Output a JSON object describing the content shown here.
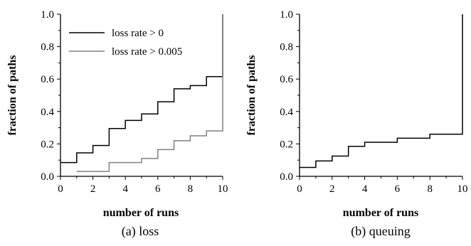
{
  "chart_data": [
    {
      "type": "line",
      "step": true,
      "caption": "(a) loss",
      "xlabel": "number of runs",
      "ylabel": "fraction of paths",
      "xlim": [
        0,
        10
      ],
      "ylim": [
        0,
        1.0
      ],
      "xticks": [
        "0",
        "2",
        "4",
        "6",
        "8",
        "10"
      ],
      "yticks": [
        "0.0",
        "0.2",
        "0.4",
        "0.6",
        "0.8",
        "1.0"
      ],
      "legend_position": "top-left",
      "series": [
        {
          "name": "loss rate > 0",
          "color": "#000000",
          "x": [
            0,
            1,
            2,
            3,
            4,
            5,
            6,
            7,
            8,
            9,
            10,
            10
          ],
          "y": [
            0.085,
            0.145,
            0.19,
            0.295,
            0.345,
            0.385,
            0.46,
            0.54,
            0.56,
            0.615,
            0.625,
            1.0
          ]
        },
        {
          "name": "loss rate > 0.005",
          "color": "#808080",
          "x": [
            1,
            3,
            5,
            6,
            7,
            8,
            9,
            10,
            10
          ],
          "y": [
            0.03,
            0.085,
            0.11,
            0.165,
            0.22,
            0.25,
            0.28,
            0.305,
            1.0
          ]
        }
      ]
    },
    {
      "type": "line",
      "step": true,
      "caption": "(b) queuing",
      "xlabel": "number of runs",
      "ylabel": "fraction of paths",
      "xlim": [
        0,
        10
      ],
      "ylim": [
        0,
        1.0
      ],
      "xticks": [
        "0",
        "2",
        "4",
        "6",
        "8",
        "10"
      ],
      "yticks": [
        "0.0",
        "0.2",
        "0.4",
        "0.6",
        "0.8",
        "1.0"
      ],
      "series": [
        {
          "color": "#000000",
          "x": [
            0,
            1,
            2,
            3,
            4,
            6,
            8,
            10,
            10
          ],
          "y": [
            0.055,
            0.095,
            0.125,
            0.185,
            0.21,
            0.235,
            0.26,
            0.275,
            1.0
          ]
        }
      ]
    }
  ]
}
